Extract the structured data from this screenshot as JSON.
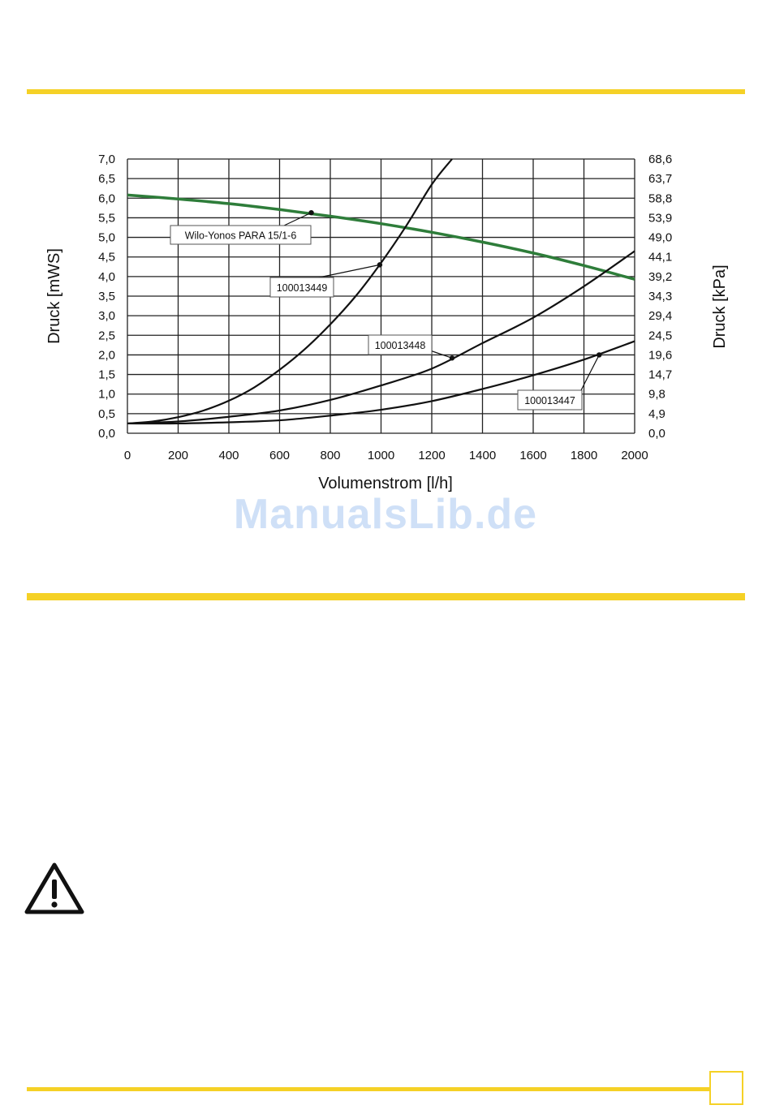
{
  "colors": {
    "accent": "#f5d126",
    "pump_curve": "#2e7d3a",
    "curve": "#111111",
    "grid": "#222222",
    "watermark": "#cfe0f7"
  },
  "watermark": "ManualsLib.de",
  "icons": {
    "warning": "warning-triangle-icon"
  },
  "chart_data": {
    "type": "line",
    "xlabel": "Volumenstrom [l/h]",
    "ylabel": "Druck [mWS]",
    "ylabel_right": "Druck [kPa]",
    "xlim": [
      0,
      2000
    ],
    "ylim": [
      0,
      7
    ],
    "grid": true,
    "x_ticks": [
      "0",
      "200",
      "400",
      "600",
      "800",
      "1000",
      "1200",
      "1400",
      "1600",
      "1800",
      "2000"
    ],
    "y_ticks": [
      "0,0",
      "0,5",
      "1,0",
      "1,5",
      "2,0",
      "2,5",
      "3,0",
      "3,5",
      "4,0",
      "4,5",
      "5,0",
      "5,5",
      "6,0",
      "6,5",
      "7,0"
    ],
    "y_ticks_right": [
      "0,0",
      "4,9",
      "9,8",
      "14,7",
      "19,6",
      "24,5",
      "29,4",
      "34,3",
      "39,2",
      "44,1",
      "49,0",
      "53,9",
      "58,8",
      "63,7",
      "68,6"
    ],
    "series": [
      {
        "name": "Wilo-Yonos PARA 15/1-6",
        "color": "pump_curve",
        "points": [
          [
            0,
            6.08
          ],
          [
            200,
            5.98
          ],
          [
            400,
            5.86
          ],
          [
            600,
            5.71
          ],
          [
            800,
            5.54
          ],
          [
            1000,
            5.35
          ],
          [
            1200,
            5.13
          ],
          [
            1400,
            4.88
          ],
          [
            1600,
            4.6
          ],
          [
            1800,
            4.28
          ],
          [
            2000,
            3.93
          ]
        ],
        "marker": [
          725,
          5.63
        ]
      },
      {
        "name": "100013449",
        "color": "curve",
        "points": [
          [
            0,
            0.25
          ],
          [
            100,
            0.3
          ],
          [
            200,
            0.41
          ],
          [
            300,
            0.58
          ],
          [
            400,
            0.83
          ],
          [
            500,
            1.17
          ],
          [
            600,
            1.62
          ],
          [
            700,
            2.15
          ],
          [
            800,
            2.78
          ],
          [
            900,
            3.5
          ],
          [
            1000,
            4.35
          ],
          [
            1100,
            5.3
          ],
          [
            1200,
            6.35
          ],
          [
            1280,
            7.0
          ]
        ],
        "marker": [
          995,
          4.3
        ]
      },
      {
        "name": "100013448",
        "color": "curve",
        "points": [
          [
            0,
            0.25
          ],
          [
            200,
            0.3
          ],
          [
            400,
            0.42
          ],
          [
            600,
            0.58
          ],
          [
            800,
            0.85
          ],
          [
            1000,
            1.22
          ],
          [
            1200,
            1.65
          ],
          [
            1400,
            2.3
          ],
          [
            1600,
            2.95
          ],
          [
            1800,
            3.75
          ],
          [
            2000,
            4.65
          ]
        ],
        "marker": [
          1280,
          1.92
        ]
      },
      {
        "name": "100013447",
        "color": "curve",
        "points": [
          [
            0,
            0.25
          ],
          [
            200,
            0.25
          ],
          [
            400,
            0.28
          ],
          [
            600,
            0.33
          ],
          [
            800,
            0.45
          ],
          [
            1000,
            0.6
          ],
          [
            1200,
            0.82
          ],
          [
            1400,
            1.13
          ],
          [
            1600,
            1.48
          ],
          [
            1800,
            1.88
          ],
          [
            2000,
            2.35
          ]
        ],
        "marker": [
          1860,
          2.0
        ]
      }
    ],
    "annotations": [
      {
        "text": "Wilo-Yonos PARA 15/1-6",
        "series": 0
      },
      {
        "text": "100013449",
        "series": 1
      },
      {
        "text": "100013448",
        "series": 2
      },
      {
        "text": "100013447",
        "series": 3
      }
    ]
  }
}
